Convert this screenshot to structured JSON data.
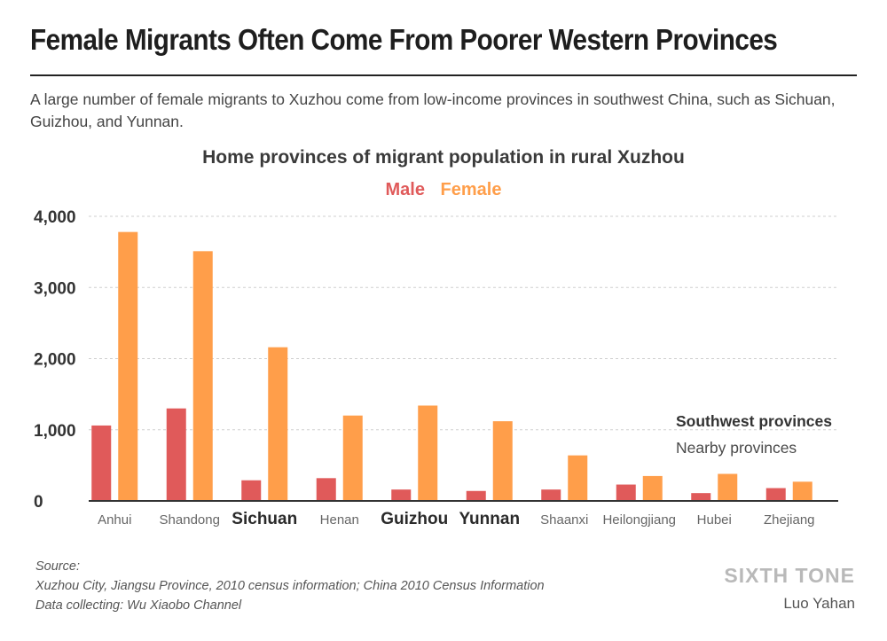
{
  "headline": "Female Migrants Often Come From Poorer Western Provinces",
  "subtitle": "A large number of female migrants to Xuzhou come from low-income provinces in southwest China, such as Sichuan, Guizhou, and Yunnan.",
  "legend_notes": {
    "southwest": "Southwest provinces",
    "nearby": "Nearby provinces"
  },
  "source": {
    "label": "Source:",
    "line1": "Xuzhou City, Jiangsu Province, 2010 census information; China 2010 Census Information",
    "line2": "Data collecting: Wu Xiaobo Channel"
  },
  "brand": "SIXTH TONE",
  "author": "Luo Yahan",
  "colors": {
    "male": "#e05a5a",
    "female": "#ff9e4a"
  },
  "chart_data": {
    "type": "bar",
    "title": "Home provinces of migrant population in rural Xuzhou",
    "xlabel": "",
    "ylabel": "",
    "ylim": [
      0,
      4000
    ],
    "yticks": [
      "0",
      "1,000",
      "2,000",
      "3,000",
      "4,000"
    ],
    "ytick_values": [
      0,
      1000,
      2000,
      3000,
      4000
    ],
    "grid": true,
    "legend": "top-center",
    "categories": [
      "Anhui",
      "Shandong",
      "Sichuan",
      "Henan",
      "Guizhou",
      "Yunnan",
      "Shaanxi",
      "Heilongjiang",
      "Hubei",
      "Zhejiang"
    ],
    "southwest": [
      false,
      false,
      true,
      false,
      true,
      true,
      false,
      false,
      false,
      false
    ],
    "series": [
      {
        "name": "Male",
        "values": [
          1060,
          1300,
          290,
          320,
          160,
          140,
          160,
          230,
          110,
          180
        ]
      },
      {
        "name": "Female",
        "values": [
          3780,
          3510,
          2160,
          1200,
          1340,
          1120,
          640,
          350,
          380,
          270
        ]
      }
    ]
  }
}
